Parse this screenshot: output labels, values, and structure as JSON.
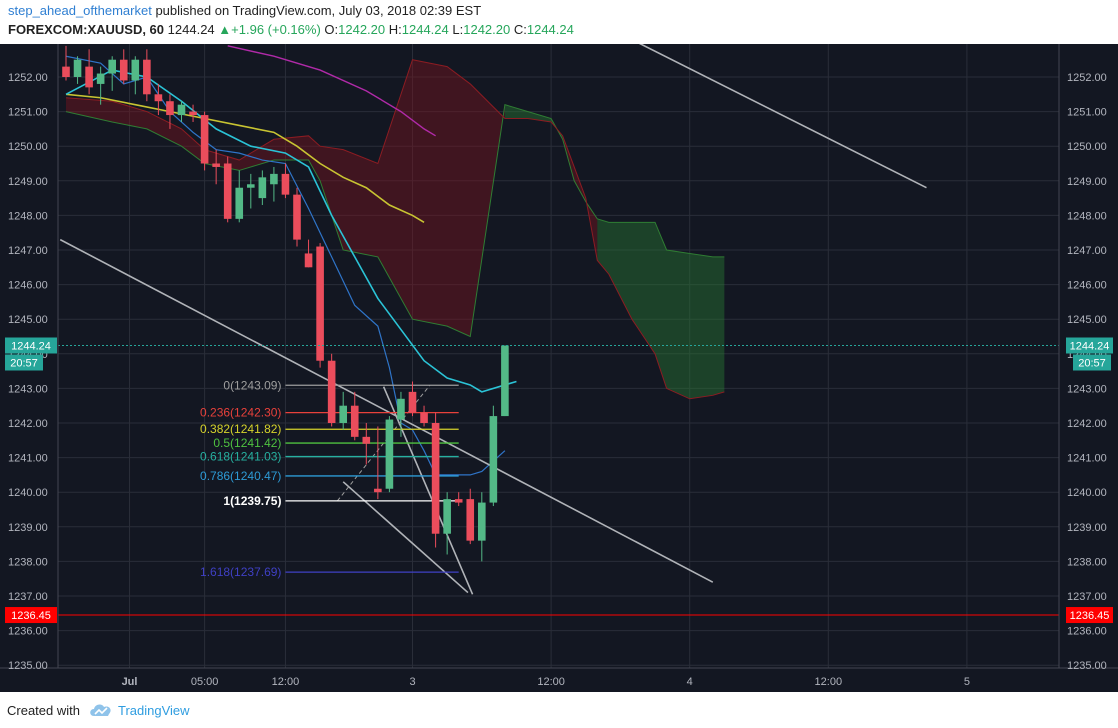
{
  "header": {
    "author": "step_ahead_ofthemarket",
    "published_text": "published on TradingView.com, July 03, 2018 02:39 EST",
    "symbol": "FOREXCOM:XAUUSD, 60",
    "last": "1244.24",
    "change": "+1.96 (+0.16%)",
    "o_label": "O:",
    "o_value": "1242.20",
    "h_label": "H:",
    "h_value": "1244.24",
    "l_label": "L:",
    "l_value": "1242.20",
    "c_label": "C:",
    "c_value": "1244.24"
  },
  "footer": {
    "created_with": "Created with",
    "brand": "TradingView"
  },
  "colors": {
    "background": "#131722",
    "grid": "#2a2e39",
    "bull": "#53b987",
    "bear": "#eb4d5c",
    "axis_text": "#b2b5be",
    "price_tag": "#26a69a",
    "alert_line": "#ff0000"
  },
  "chart_data": {
    "type": "candlestick",
    "symbol": "FOREXCOM:XAUUSD",
    "interval": "60",
    "ylim": [
      1234.75,
      1252.85
    ],
    "y_ticks": [
      "1252.00",
      "1251.00",
      "1250.00",
      "1249.00",
      "1248.00",
      "1247.00",
      "1246.00",
      "1245.00",
      "1244.00",
      "1243.00",
      "1242.00",
      "1241.00",
      "1240.00",
      "1239.00",
      "1238.00",
      "1237.00",
      "1236.00",
      "1235.00"
    ],
    "x_ticks": [
      {
        "label": "Jul",
        "bar": 5.5
      },
      {
        "label": "05:00",
        "bar": 12
      },
      {
        "label": "12:00",
        "bar": 19
      },
      {
        "label": "3",
        "bar": 30
      },
      {
        "label": "12:00",
        "bar": 42
      },
      {
        "label": "4",
        "bar": 54
      },
      {
        "label": "12:00",
        "bar": 66
      },
      {
        "label": "5",
        "bar": 78
      }
    ],
    "candles": [
      {
        "o": 1252.3,
        "h": 1252.9,
        "l": 1251.9,
        "c": 1252.0
      },
      {
        "o": 1252.0,
        "h": 1252.6,
        "l": 1251.8,
        "c": 1252.5
      },
      {
        "o": 1252.3,
        "h": 1252.8,
        "l": 1251.5,
        "c": 1251.7
      },
      {
        "o": 1251.8,
        "h": 1252.3,
        "l": 1251.2,
        "c": 1252.1
      },
      {
        "o": 1252.1,
        "h": 1252.6,
        "l": 1251.6,
        "c": 1252.5
      },
      {
        "o": 1252.5,
        "h": 1252.8,
        "l": 1251.8,
        "c": 1251.9
      },
      {
        "o": 1251.9,
        "h": 1252.6,
        "l": 1251.5,
        "c": 1252.5
      },
      {
        "o": 1252.5,
        "h": 1252.8,
        "l": 1251.3,
        "c": 1251.5
      },
      {
        "o": 1251.5,
        "h": 1251.8,
        "l": 1250.9,
        "c": 1251.3
      },
      {
        "o": 1251.3,
        "h": 1251.5,
        "l": 1250.5,
        "c": 1250.9
      },
      {
        "o": 1250.9,
        "h": 1251.3,
        "l": 1250.7,
        "c": 1251.2
      },
      {
        "o": 1251.0,
        "h": 1251.2,
        "l": 1250.7,
        "c": 1250.9
      },
      {
        "o": 1250.9,
        "h": 1251.0,
        "l": 1249.3,
        "c": 1249.5
      },
      {
        "o": 1249.5,
        "h": 1249.9,
        "l": 1248.9,
        "c": 1249.4
      },
      {
        "o": 1249.5,
        "h": 1249.7,
        "l": 1247.8,
        "c": 1247.9
      },
      {
        "o": 1247.9,
        "h": 1249.3,
        "l": 1247.8,
        "c": 1248.8
      },
      {
        "o": 1248.8,
        "h": 1249.2,
        "l": 1248.2,
        "c": 1248.9
      },
      {
        "o": 1248.5,
        "h": 1249.3,
        "l": 1248.3,
        "c": 1249.1
      },
      {
        "o": 1248.9,
        "h": 1249.4,
        "l": 1248.4,
        "c": 1249.2
      },
      {
        "o": 1249.2,
        "h": 1249.5,
        "l": 1248.5,
        "c": 1248.6
      },
      {
        "o": 1248.6,
        "h": 1248.8,
        "l": 1247.1,
        "c": 1247.3
      },
      {
        "o": 1246.9,
        "h": 1247.3,
        "l": 1246.5,
        "c": 1246.5
      },
      {
        "o": 1247.1,
        "h": 1247.2,
        "l": 1243.6,
        "c": 1243.8
      },
      {
        "o": 1243.8,
        "h": 1244.0,
        "l": 1241.9,
        "c": 1242.0
      },
      {
        "o": 1242.0,
        "h": 1242.9,
        "l": 1241.8,
        "c": 1242.5
      },
      {
        "o": 1242.5,
        "h": 1242.9,
        "l": 1241.5,
        "c": 1241.6
      },
      {
        "o": 1241.6,
        "h": 1242.0,
        "l": 1240.8,
        "c": 1241.4
      },
      {
        "o": 1240.1,
        "h": 1241.9,
        "l": 1239.8,
        "c": 1240.0
      },
      {
        "o": 1240.1,
        "h": 1242.2,
        "l": 1240.0,
        "c": 1242.1
      },
      {
        "o": 1242.1,
        "h": 1242.9,
        "l": 1241.6,
        "c": 1242.7
      },
      {
        "o": 1242.9,
        "h": 1243.2,
        "l": 1242.2,
        "c": 1242.3
      },
      {
        "o": 1242.3,
        "h": 1242.5,
        "l": 1241.9,
        "c": 1242.0
      },
      {
        "o": 1242.0,
        "h": 1242.3,
        "l": 1238.4,
        "c": 1238.8
      },
      {
        "o": 1238.8,
        "h": 1240.0,
        "l": 1238.2,
        "c": 1239.8
      },
      {
        "o": 1239.8,
        "h": 1240.0,
        "l": 1239.6,
        "c": 1239.7
      },
      {
        "o": 1239.8,
        "h": 1240.1,
        "l": 1238.5,
        "c": 1238.6
      },
      {
        "o": 1238.6,
        "h": 1240.0,
        "l": 1238.0,
        "c": 1239.7
      },
      {
        "o": 1239.7,
        "h": 1242.5,
        "l": 1239.6,
        "c": 1242.2
      },
      {
        "o": 1242.2,
        "h": 1244.24,
        "l": 1242.2,
        "c": 1244.24
      }
    ],
    "ema_fast": [
      [
        0,
        1251.5
      ],
      [
        4,
        1252.2
      ],
      [
        7,
        1252.0
      ],
      [
        10,
        1251.3
      ],
      [
        13,
        1250.5
      ],
      [
        16,
        1250.0
      ],
      [
        19,
        1249.8
      ],
      [
        21,
        1249.4
      ],
      [
        23,
        1248.0
      ],
      [
        25,
        1246.8
      ],
      [
        27,
        1245.6
      ],
      [
        29,
        1244.7
      ],
      [
        31,
        1243.8
      ],
      [
        33,
        1243.3
      ],
      [
        35,
        1243.1
      ],
      [
        36,
        1242.9
      ],
      [
        38,
        1243.1
      ],
      [
        39,
        1243.2
      ]
    ],
    "sma_fast": [
      [
        0,
        1252.6
      ],
      [
        3,
        1252.4
      ],
      [
        5,
        1251.8
      ],
      [
        7,
        1252.0
      ],
      [
        9,
        1251.0
      ],
      [
        11,
        1250.4
      ],
      [
        13,
        1249.9
      ],
      [
        15,
        1249.8
      ],
      [
        17,
        1249.6
      ],
      [
        19,
        1249.5
      ],
      [
        21,
        1248.2
      ],
      [
        23,
        1246.8
      ],
      [
        25,
        1245.4
      ],
      [
        27,
        1244.8
      ],
      [
        28,
        1243.6
      ],
      [
        29,
        1242.0
      ],
      [
        30,
        1241.8
      ],
      [
        31,
        1241.2
      ],
      [
        32,
        1240.5
      ],
      [
        33,
        1240.5
      ],
      [
        35,
        1240.5
      ],
      [
        36,
        1240.6
      ],
      [
        37,
        1240.9
      ],
      [
        38,
        1241.2
      ]
    ],
    "ma_mid": [
      [
        0,
        1251.5
      ],
      [
        3,
        1251.4
      ],
      [
        6,
        1251.2
      ],
      [
        9,
        1251.0
      ],
      [
        12,
        1250.8
      ],
      [
        15,
        1250.6
      ],
      [
        18,
        1250.4
      ],
      [
        20,
        1250.0
      ],
      [
        22,
        1249.5
      ],
      [
        24,
        1249.1
      ],
      [
        26,
        1248.8
      ],
      [
        28,
        1248.3
      ],
      [
        30,
        1248.0
      ],
      [
        31,
        1247.8
      ]
    ],
    "ma_slow": [
      [
        14,
        1252.9
      ],
      [
        18,
        1252.6
      ],
      [
        22,
        1252.2
      ],
      [
        26,
        1251.6
      ],
      [
        29,
        1251.0
      ],
      [
        31,
        1250.5
      ],
      [
        32,
        1250.3
      ]
    ],
    "kumo_span_a": [
      [
        0,
        1251.0
      ],
      [
        4,
        1250.7
      ],
      [
        7,
        1250.5
      ],
      [
        10,
        1250.0
      ],
      [
        12,
        1249.5
      ],
      [
        15,
        1249.3
      ],
      [
        18,
        1249.6
      ],
      [
        21,
        1249.6
      ],
      [
        22,
        1249.0
      ],
      [
        24,
        1247.0
      ],
      [
        27,
        1246.8
      ],
      [
        30,
        1245.0
      ],
      [
        33,
        1244.8
      ],
      [
        35,
        1244.5
      ],
      [
        38,
        1251.2
      ],
      [
        40,
        1251.0
      ],
      [
        42,
        1250.8
      ],
      [
        43,
        1250.2
      ],
      [
        44,
        1249.0
      ],
      [
        45,
        1248.4
      ],
      [
        46,
        1247.9
      ],
      [
        47,
        1247.8
      ],
      [
        49,
        1247.8
      ],
      [
        51,
        1247.8
      ],
      [
        52,
        1247.0
      ],
      [
        54,
        1246.9
      ],
      [
        56,
        1246.8
      ],
      [
        57,
        1246.8
      ]
    ],
    "kumo_span_b": [
      [
        0,
        1251.4
      ],
      [
        4,
        1251.3
      ],
      [
        7,
        1251.0
      ],
      [
        10,
        1250.5
      ],
      [
        12,
        1249.9
      ],
      [
        15,
        1249.6
      ],
      [
        18,
        1250.2
      ],
      [
        21,
        1250.3
      ],
      [
        22,
        1250.0
      ],
      [
        24,
        1249.9
      ],
      [
        27,
        1249.5
      ],
      [
        30,
        1252.5
      ],
      [
        33,
        1252.3
      ],
      [
        35,
        1251.8
      ],
      [
        38,
        1250.8
      ],
      [
        40,
        1250.8
      ],
      [
        42,
        1250.7
      ],
      [
        43,
        1250.3
      ],
      [
        44,
        1249.4
      ],
      [
        45,
        1248.5
      ],
      [
        46,
        1246.7
      ],
      [
        47,
        1246.3
      ],
      [
        49,
        1245.0
      ],
      [
        51,
        1244.0
      ],
      [
        52,
        1243.0
      ],
      [
        54,
        1242.7
      ],
      [
        56,
        1242.8
      ],
      [
        57,
        1242.9
      ]
    ],
    "fibonacci": {
      "anchor_from": {
        "bar": 23.5,
        "price": 1239.75
      },
      "anchor_to": {
        "bar": 31.5,
        "price": 1243.09
      },
      "levels": [
        {
          "label": "0(1243.09)",
          "price": 1243.09,
          "color": "#9e9e9e"
        },
        {
          "label": "0.236(1242.30)",
          "price": 1242.3,
          "color": "#e8413b"
        },
        {
          "label": "0.382(1241.82)",
          "price": 1241.82,
          "color": "#d6d32b"
        },
        {
          "label": "0.5(1241.42)",
          "price": 1241.42,
          "color": "#4fc240"
        },
        {
          "label": "0.618(1241.03)",
          "price": 1241.03,
          "color": "#26b0a0"
        },
        {
          "label": "0.786(1240.47)",
          "price": 1240.47,
          "color": "#2d9bd6"
        },
        {
          "label": "1(1239.75)",
          "price": 1239.75,
          "color": "#ffffff"
        },
        {
          "label": "1.618(1237.69)",
          "price": 1237.69,
          "color": "#3f40c4"
        }
      ]
    },
    "trendlines": [
      {
        "from": {
          "bar": -0.5,
          "price": 1247.3
        },
        "to": {
          "bar": 56,
          "price": 1237.4
        }
      },
      {
        "from": {
          "bar": 46.5,
          "price": 1253.5
        },
        "to": {
          "bar": 74.5,
          "price": 1248.8
        }
      },
      {
        "from": {
          "bar": 24,
          "price": 1240.3
        },
        "to": {
          "bar": 34.8,
          "price": 1237.1
        }
      },
      {
        "from": {
          "bar": 27.5,
          "price": 1243.05
        },
        "to": {
          "bar": 35.2,
          "price": 1237.05
        }
      }
    ],
    "current_price": {
      "value": "1244.24",
      "countdown": "20:57"
    },
    "alert_line": {
      "value": "1236.45"
    }
  }
}
